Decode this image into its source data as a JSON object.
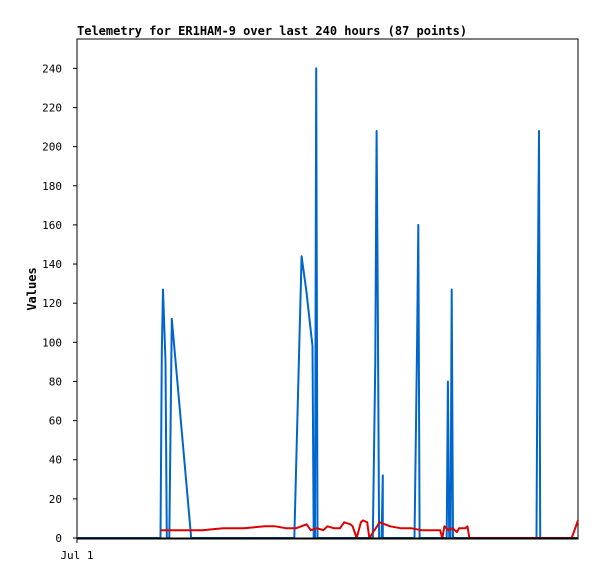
{
  "chart_data": {
    "type": "line",
    "title": "Telemetry for ER1HAM-9 over last 240 hours (87 points)",
    "xlabel": "",
    "ylabel": "Values",
    "x_tick_labels": [
      "Jul 1"
    ],
    "x_range_hours": [
      0,
      240
    ],
    "ylim": [
      0,
      255
    ],
    "y_ticks": [
      0,
      20,
      40,
      60,
      80,
      100,
      120,
      140,
      160,
      180,
      200,
      220,
      240
    ],
    "grid": false,
    "legend": "none",
    "series": [
      {
        "color": "#0066cc",
        "x": [
          0,
          40.0,
          40.6,
          41.2,
          42.4,
          43.0,
          44.2,
          45.4,
          54.7,
          100.0,
          104.1,
          107.6,
          109.9,
          112.8,
          113.4,
          114.0,
          114.6,
          115.2,
          141.7,
          142.9,
          143.5,
          144.1,
          144.7,
          145.3,
          145.9,
          146.5,
          146.5,
          161.7,
          162.9,
          163.5,
          164.1,
          164.7,
          165.3,
          165.9,
          176.5,
          177.1,
          177.7,
          178.3,
          178.9,
          179.5,
          180.1,
          180.7,
          181.9,
          193.6,
          195.4,
          198.3,
          199.5,
          200.1,
          200.7,
          201.3,
          219.5,
          220.1,
          220.7,
          221.3,
          221.9,
          222.5,
          223.1,
          223.7,
          224.3,
          240
        ],
        "y": [
          0,
          0,
          95,
          127,
          90,
          0,
          0,
          112,
          0,
          0,
          0,
          144,
          126,
          98,
          0,
          0,
          240,
          0,
          0,
          90,
          208,
          120,
          0,
          0,
          0,
          32,
          0,
          0,
          100,
          160,
          0,
          0,
          0,
          0,
          0,
          0,
          80,
          0,
          0,
          127,
          0,
          0,
          0,
          0,
          0,
          0,
          0,
          0,
          0,
          0,
          0,
          0,
          120,
          208,
          0,
          0,
          0,
          0,
          0,
          0
        ]
      },
      {
        "color": "#dd0000",
        "x": [
          40.0,
          50.0,
          60.0,
          70.0,
          80.0,
          90.0,
          95.0,
          100.0,
          105.0,
          110.0,
          112.0,
          115.0,
          118.0,
          120.0,
          123.0,
          126.0,
          128.0,
          131.0,
          132.0,
          134.0,
          136.0,
          137.0,
          139.0,
          140.0,
          145.0,
          150.0,
          155.0,
          160.0,
          165.0,
          170.0,
          174.0,
          175.0,
          176.0,
          177.0,
          178.0,
          180.0,
          181.0,
          182.0,
          183.0,
          186.0,
          187.0,
          188.0,
          237.0,
          240
        ],
        "y": [
          4,
          4,
          4,
          5,
          5,
          6,
          6,
          5,
          5,
          7,
          4,
          5,
          4,
          6,
          5,
          5,
          8,
          7,
          6,
          0,
          8,
          9,
          8,
          0,
          8,
          6,
          5,
          5,
          4,
          4,
          4,
          0,
          6,
          5,
          4,
          5,
          4,
          3,
          5,
          5,
          6,
          0,
          0,
          9
        ]
      }
    ]
  }
}
